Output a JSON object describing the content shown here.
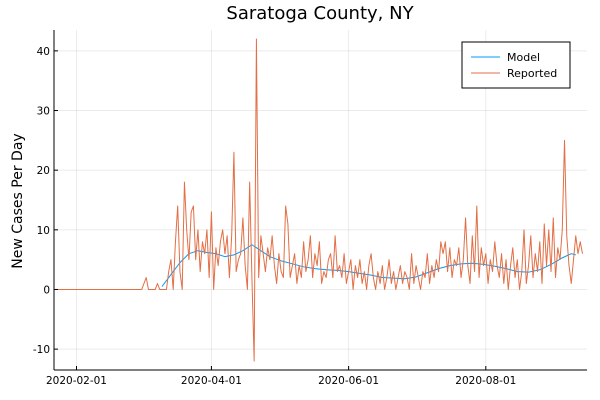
{
  "chart_data": {
    "type": "line",
    "title": "Saratoga County, NY",
    "xlabel": "",
    "ylabel": "New Cases Per Day",
    "x_start": "2020-01-22",
    "x_end": "2020-09-15",
    "xlim": [
      "2020-01-22",
      "2020-09-15"
    ],
    "ylim": [
      -13.5,
      43.5
    ],
    "x_ticks": [
      "2020-02-01",
      "2020-04-01",
      "2020-06-01",
      "2020-08-01"
    ],
    "y_ticks": [
      -10,
      0,
      10,
      20,
      30,
      40
    ],
    "grid": true,
    "legend_position": "top-right",
    "series": [
      {
        "name": "Model",
        "color": "#009AFA",
        "points": [
          [
            "2020-03-10",
            0.5
          ],
          [
            "2020-03-14",
            2.5
          ],
          [
            "2020-03-18",
            4.5
          ],
          [
            "2020-03-22",
            6.0
          ],
          [
            "2020-03-26",
            6.5
          ],
          [
            "2020-03-30",
            6.2
          ],
          [
            "2020-04-03",
            6.0
          ],
          [
            "2020-04-07",
            5.5
          ],
          [
            "2020-04-11",
            5.8
          ],
          [
            "2020-04-15",
            6.5
          ],
          [
            "2020-04-19",
            7.5
          ],
          [
            "2020-04-23",
            6.5
          ],
          [
            "2020-04-27",
            5.5
          ],
          [
            "2020-05-02",
            4.8
          ],
          [
            "2020-05-07",
            4.3
          ],
          [
            "2020-05-12",
            3.8
          ],
          [
            "2020-05-17",
            3.5
          ],
          [
            "2020-05-22",
            3.3
          ],
          [
            "2020-05-27",
            3.2
          ],
          [
            "2020-06-01",
            3.0
          ],
          [
            "2020-06-06",
            2.7
          ],
          [
            "2020-06-11",
            2.4
          ],
          [
            "2020-06-16",
            2.0
          ],
          [
            "2020-06-21",
            1.9
          ],
          [
            "2020-06-26",
            1.8
          ],
          [
            "2020-07-01",
            2.1
          ],
          [
            "2020-07-06",
            2.8
          ],
          [
            "2020-07-11",
            3.5
          ],
          [
            "2020-07-16",
            4.0
          ],
          [
            "2020-07-21",
            4.3
          ],
          [
            "2020-07-26",
            4.4
          ],
          [
            "2020-07-31",
            4.2
          ],
          [
            "2020-08-05",
            3.9
          ],
          [
            "2020-08-10",
            3.5
          ],
          [
            "2020-08-15",
            3.0
          ],
          [
            "2020-08-20",
            2.9
          ],
          [
            "2020-08-25",
            3.3
          ],
          [
            "2020-08-30",
            4.2
          ],
          [
            "2020-09-04",
            5.3
          ],
          [
            "2020-09-08",
            6.0
          ],
          [
            "2020-09-10",
            5.8
          ]
        ]
      },
      {
        "name": "Reported",
        "color": "#E26F46",
        "points": [
          [
            "2020-01-22",
            0
          ],
          [
            "2020-03-01",
            0
          ],
          [
            "2020-03-03",
            2
          ],
          [
            "2020-03-04",
            0
          ],
          [
            "2020-03-07",
            0
          ],
          [
            "2020-03-08",
            1
          ],
          [
            "2020-03-09",
            0
          ],
          [
            "2020-03-12",
            0
          ],
          [
            "2020-03-13",
            3
          ],
          [
            "2020-03-14",
            5
          ],
          [
            "2020-03-15",
            0
          ],
          [
            "2020-03-16",
            8
          ],
          [
            "2020-03-17",
            14
          ],
          [
            "2020-03-18",
            3
          ],
          [
            "2020-03-19",
            0
          ],
          [
            "2020-03-20",
            18
          ],
          [
            "2020-03-21",
            10
          ],
          [
            "2020-03-22",
            5
          ],
          [
            "2020-03-23",
            13
          ],
          [
            "2020-03-24",
            14
          ],
          [
            "2020-03-25",
            5
          ],
          [
            "2020-03-26",
            10
          ],
          [
            "2020-03-27",
            3
          ],
          [
            "2020-03-28",
            8
          ],
          [
            "2020-03-29",
            6
          ],
          [
            "2020-03-30",
            10
          ],
          [
            "2020-03-31",
            2
          ],
          [
            "2020-04-01",
            13
          ],
          [
            "2020-04-02",
            0
          ],
          [
            "2020-04-03",
            7
          ],
          [
            "2020-04-04",
            4
          ],
          [
            "2020-04-05",
            8
          ],
          [
            "2020-04-06",
            10
          ],
          [
            "2020-04-07",
            6
          ],
          [
            "2020-04-08",
            9
          ],
          [
            "2020-04-09",
            2
          ],
          [
            "2020-04-10",
            9
          ],
          [
            "2020-04-11",
            23
          ],
          [
            "2020-04-12",
            3
          ],
          [
            "2020-04-13",
            5
          ],
          [
            "2020-04-14",
            6
          ],
          [
            "2020-04-15",
            12
          ],
          [
            "2020-04-16",
            4
          ],
          [
            "2020-04-17",
            0
          ],
          [
            "2020-04-18",
            18
          ],
          [
            "2020-04-19",
            2
          ],
          [
            "2020-04-20",
            -12
          ],
          [
            "2020-04-21",
            42
          ],
          [
            "2020-04-22",
            2
          ],
          [
            "2020-04-23",
            9
          ],
          [
            "2020-04-24",
            6
          ],
          [
            "2020-04-25",
            3
          ],
          [
            "2020-04-26",
            7
          ],
          [
            "2020-04-27",
            5
          ],
          [
            "2020-04-28",
            9
          ],
          [
            "2020-04-29",
            4
          ],
          [
            "2020-04-30",
            1
          ],
          [
            "2020-05-01",
            6
          ],
          [
            "2020-05-02",
            3
          ],
          [
            "2020-05-03",
            2
          ],
          [
            "2020-05-04",
            14
          ],
          [
            "2020-05-05",
            11
          ],
          [
            "2020-05-06",
            2
          ],
          [
            "2020-05-07",
            4
          ],
          [
            "2020-05-08",
            6
          ],
          [
            "2020-05-09",
            1
          ],
          [
            "2020-05-10",
            4
          ],
          [
            "2020-05-11",
            2
          ],
          [
            "2020-05-12",
            8
          ],
          [
            "2020-05-13",
            3
          ],
          [
            "2020-05-14",
            5
          ],
          [
            "2020-05-15",
            9
          ],
          [
            "2020-05-16",
            2
          ],
          [
            "2020-05-17",
            6
          ],
          [
            "2020-05-18",
            4
          ],
          [
            "2020-05-19",
            8
          ],
          [
            "2020-05-20",
            1
          ],
          [
            "2020-05-21",
            3
          ],
          [
            "2020-05-22",
            2
          ],
          [
            "2020-05-23",
            5
          ],
          [
            "2020-05-24",
            6
          ],
          [
            "2020-05-25",
            2
          ],
          [
            "2020-05-26",
            9
          ],
          [
            "2020-05-27",
            3
          ],
          [
            "2020-05-28",
            4
          ],
          [
            "2020-05-29",
            2
          ],
          [
            "2020-05-30",
            6
          ],
          [
            "2020-05-31",
            1
          ],
          [
            "2020-06-01",
            3
          ],
          [
            "2020-06-02",
            5
          ],
          [
            "2020-06-03",
            0
          ],
          [
            "2020-06-04",
            4
          ],
          [
            "2020-06-05",
            2
          ],
          [
            "2020-06-06",
            5
          ],
          [
            "2020-06-07",
            1
          ],
          [
            "2020-06-08",
            3
          ],
          [
            "2020-06-09",
            0
          ],
          [
            "2020-06-10",
            4
          ],
          [
            "2020-06-11",
            6
          ],
          [
            "2020-06-12",
            2
          ],
          [
            "2020-06-13",
            0
          ],
          [
            "2020-06-14",
            3
          ],
          [
            "2020-06-15",
            1
          ],
          [
            "2020-06-16",
            4
          ],
          [
            "2020-06-17",
            0
          ],
          [
            "2020-06-18",
            2
          ],
          [
            "2020-06-19",
            5
          ],
          [
            "2020-06-20",
            1
          ],
          [
            "2020-06-21",
            3
          ],
          [
            "2020-06-22",
            0
          ],
          [
            "2020-06-23",
            2
          ],
          [
            "2020-06-24",
            4
          ],
          [
            "2020-06-25",
            1
          ],
          [
            "2020-06-26",
            3
          ],
          [
            "2020-06-27",
            2
          ],
          [
            "2020-06-28",
            0
          ],
          [
            "2020-06-29",
            6
          ],
          [
            "2020-06-30",
            1
          ],
          [
            "2020-07-01",
            4
          ],
          [
            "2020-07-02",
            2
          ],
          [
            "2020-07-03",
            0
          ],
          [
            "2020-07-04",
            3
          ],
          [
            "2020-07-05",
            2
          ],
          [
            "2020-07-06",
            6
          ],
          [
            "2020-07-07",
            1
          ],
          [
            "2020-07-08",
            4
          ],
          [
            "2020-07-09",
            2
          ],
          [
            "2020-07-10",
            5
          ],
          [
            "2020-07-11",
            3
          ],
          [
            "2020-07-12",
            8
          ],
          [
            "2020-07-13",
            6
          ],
          [
            "2020-07-14",
            8
          ],
          [
            "2020-07-15",
            3
          ],
          [
            "2020-07-16",
            7
          ],
          [
            "2020-07-17",
            2
          ],
          [
            "2020-07-18",
            5
          ],
          [
            "2020-07-19",
            4
          ],
          [
            "2020-07-20",
            7
          ],
          [
            "2020-07-21",
            2
          ],
          [
            "2020-07-22",
            5
          ],
          [
            "2020-07-23",
            12
          ],
          [
            "2020-07-24",
            4
          ],
          [
            "2020-07-25",
            1
          ],
          [
            "2020-07-26",
            9
          ],
          [
            "2020-07-27",
            3
          ],
          [
            "2020-07-28",
            14
          ],
          [
            "2020-07-29",
            2
          ],
          [
            "2020-07-30",
            7
          ],
          [
            "2020-07-31",
            4
          ],
          [
            "2020-08-01",
            6
          ],
          [
            "2020-08-02",
            1
          ],
          [
            "2020-08-03",
            5
          ],
          [
            "2020-08-04",
            3
          ],
          [
            "2020-08-05",
            8
          ],
          [
            "2020-08-06",
            4
          ],
          [
            "2020-08-07",
            2
          ],
          [
            "2020-08-08",
            6
          ],
          [
            "2020-08-09",
            1
          ],
          [
            "2020-08-10",
            5
          ],
          [
            "2020-08-11",
            0
          ],
          [
            "2020-08-12",
            4
          ],
          [
            "2020-08-13",
            7
          ],
          [
            "2020-08-14",
            2
          ],
          [
            "2020-08-15",
            5
          ],
          [
            "2020-08-16",
            0
          ],
          [
            "2020-08-17",
            3
          ],
          [
            "2020-08-18",
            10
          ],
          [
            "2020-08-19",
            1
          ],
          [
            "2020-08-20",
            4
          ],
          [
            "2020-08-21",
            9
          ],
          [
            "2020-08-22",
            2
          ],
          [
            "2020-08-23",
            6
          ],
          [
            "2020-08-24",
            3
          ],
          [
            "2020-08-25",
            8
          ],
          [
            "2020-08-26",
            1
          ],
          [
            "2020-08-27",
            11
          ],
          [
            "2020-08-28",
            4
          ],
          [
            "2020-08-29",
            10
          ],
          [
            "2020-08-30",
            3
          ],
          [
            "2020-08-31",
            12
          ],
          [
            "2020-09-01",
            2
          ],
          [
            "2020-09-02",
            7
          ],
          [
            "2020-09-03",
            5
          ],
          [
            "2020-09-04",
            10
          ],
          [
            "2020-09-05",
            25
          ],
          [
            "2020-09-06",
            9
          ],
          [
            "2020-09-07",
            4
          ],
          [
            "2020-09-08",
            1
          ],
          [
            "2020-09-09",
            5
          ],
          [
            "2020-09-10",
            9
          ],
          [
            "2020-09-11",
            6
          ],
          [
            "2020-09-12",
            8
          ],
          [
            "2020-09-13",
            6
          ]
        ]
      }
    ]
  }
}
